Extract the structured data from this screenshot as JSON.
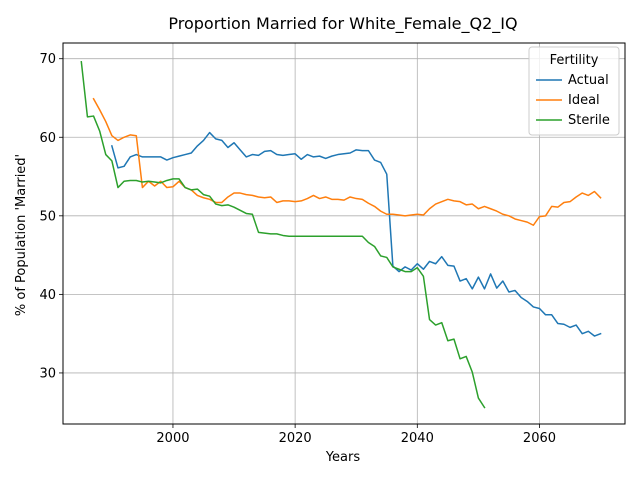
{
  "chart_data": {
    "type": "line",
    "title": "Proportion Married for White_Female_Q2_IQ",
    "xlabel": "Years",
    "ylabel": "% of Population 'Married'",
    "xlim": [
      1982,
      2074
    ],
    "ylim": [
      23.5,
      72
    ],
    "xticks": [
      2000,
      2020,
      2040,
      2060
    ],
    "yticks": [
      30,
      40,
      50,
      60,
      70
    ],
    "grid": true,
    "legend": {
      "title": "Fertility",
      "placement": "top-right"
    },
    "series": [
      {
        "name": "Actual",
        "color": "#1f77b4",
        "x": [
          1990,
          1991,
          1992,
          1993,
          1994,
          1995,
          1996,
          1997,
          1998,
          1999,
          2000,
          2001,
          2002,
          2003,
          2004,
          2005,
          2006,
          2007,
          2008,
          2009,
          2010,
          2011,
          2012,
          2013,
          2014,
          2015,
          2016,
          2017,
          2018,
          2019,
          2020,
          2021,
          2022,
          2023,
          2024,
          2025,
          2026,
          2027,
          2028,
          2029,
          2030,
          2031,
          2032,
          2033,
          2034,
          2035,
          2036,
          2037,
          2038,
          2039,
          2040,
          2041,
          2042,
          2043,
          2044,
          2045,
          2046,
          2047,
          2048,
          2049,
          2050,
          2051,
          2052,
          2053,
          2054,
          2055,
          2056,
          2057,
          2058,
          2059,
          2060,
          2061,
          2062,
          2063,
          2064,
          2065,
          2066,
          2067,
          2068,
          2069,
          2070
        ],
        "y": [
          58.9,
          56.1,
          56.3,
          57.5,
          57.8,
          57.5,
          57.5,
          57.5,
          57.5,
          57.1,
          57.4,
          57.6,
          57.8,
          58.0,
          58.9,
          59.6,
          60.6,
          59.8,
          59.6,
          58.7,
          59.3,
          58.4,
          57.5,
          57.8,
          57.7,
          58.2,
          58.3,
          57.8,
          57.7,
          57.8,
          57.9,
          57.2,
          57.8,
          57.5,
          57.6,
          57.3,
          57.6,
          57.8,
          57.9,
          58.0,
          58.4,
          58.3,
          58.3,
          57.1,
          56.8,
          55.3,
          43.6,
          42.9,
          43.5,
          43.1,
          43.9,
          43.2,
          44.2,
          43.9,
          44.8,
          43.7,
          43.6,
          41.7,
          42.0,
          40.7,
          42.2,
          40.7,
          42.6,
          40.8,
          41.7,
          40.3,
          40.5,
          39.6,
          39.1,
          38.4,
          38.2,
          37.4,
          37.4,
          36.3,
          36.2,
          35.8,
          36.1,
          35.0,
          35.3,
          34.7,
          35.0
        ]
      },
      {
        "name": "Ideal",
        "color": "#ff7f0e",
        "x": [
          1987,
          1988,
          1989,
          1990,
          1991,
          1992,
          1993,
          1994,
          1995,
          1996,
          1997,
          1998,
          1999,
          2000,
          2001,
          2002,
          2003,
          2004,
          2005,
          2006,
          2007,
          2008,
          2009,
          2010,
          2011,
          2012,
          2013,
          2014,
          2015,
          2016,
          2017,
          2018,
          2019,
          2020,
          2021,
          2022,
          2023,
          2024,
          2025,
          2026,
          2027,
          2028,
          2029,
          2030,
          2031,
          2032,
          2033,
          2034,
          2035,
          2036,
          2037,
          2038,
          2039,
          2040,
          2041,
          2042,
          2043,
          2044,
          2045,
          2046,
          2047,
          2048,
          2049,
          2050,
          2051,
          2052,
          2053,
          2054,
          2055,
          2056,
          2057,
          2058,
          2059,
          2060,
          2061,
          2062,
          2063,
          2064,
          2065,
          2066,
          2067,
          2068,
          2069,
          2070
        ],
        "y": [
          64.9,
          63.5,
          62.0,
          60.2,
          59.6,
          60.0,
          60.3,
          60.2,
          53.6,
          54.4,
          53.8,
          54.4,
          53.6,
          53.7,
          54.4,
          53.6,
          53.3,
          52.6,
          52.3,
          52.1,
          51.7,
          51.7,
          52.4,
          52.9,
          52.9,
          52.7,
          52.6,
          52.4,
          52.3,
          52.4,
          51.7,
          51.9,
          51.9,
          51.8,
          51.9,
          52.2,
          52.6,
          52.2,
          52.4,
          52.1,
          52.1,
          52.0,
          52.4,
          52.2,
          52.1,
          51.6,
          51.2,
          50.6,
          50.2,
          50.2,
          50.1,
          50.0,
          50.1,
          50.2,
          50.1,
          50.9,
          51.5,
          51.8,
          52.1,
          51.9,
          51.8,
          51.4,
          51.5,
          50.9,
          51.2,
          50.9,
          50.6,
          50.2,
          50.0,
          49.6,
          49.4,
          49.2,
          48.8,
          49.9,
          50.0,
          51.2,
          51.1,
          51.7,
          51.8,
          52.4,
          52.9,
          52.6,
          53.1,
          52.3
        ]
      },
      {
        "name": "Sterile",
        "color": "#2ca02c",
        "x": [
          1985,
          1986,
          1987,
          1988,
          1989,
          1990,
          1991,
          1992,
          1993,
          1994,
          1995,
          1996,
          1997,
          1998,
          1999,
          2000,
          2001,
          2002,
          2003,
          2004,
          2005,
          2006,
          2007,
          2008,
          2009,
          2010,
          2011,
          2012,
          2013,
          2014,
          2015,
          2016,
          2017,
          2018,
          2019,
          2020,
          2021,
          2022,
          2023,
          2024,
          2025,
          2026,
          2027,
          2028,
          2029,
          2030,
          2031,
          2032,
          2033,
          2034,
          2035,
          2036,
          2037,
          2038,
          2039,
          2040,
          2041,
          2042,
          2043,
          2044,
          2045,
          2046,
          2047,
          2048,
          2049,
          2050,
          2051
        ],
        "y": [
          69.6,
          62.6,
          62.7,
          60.8,
          57.8,
          57.0,
          53.6,
          54.4,
          54.5,
          54.5,
          54.3,
          54.4,
          54.3,
          54.2,
          54.5,
          54.7,
          54.7,
          53.6,
          53.3,
          53.4,
          52.7,
          52.5,
          51.5,
          51.3,
          51.4,
          51.1,
          50.7,
          50.3,
          50.2,
          47.9,
          47.8,
          47.7,
          47.7,
          47.5,
          47.4,
          47.4,
          47.4,
          47.4,
          47.4,
          47.4,
          47.4,
          47.4,
          47.4,
          47.4,
          47.4,
          47.4,
          47.4,
          46.6,
          46.1,
          44.9,
          44.7,
          43.5,
          43.2,
          42.9,
          42.9,
          43.4,
          42.3,
          36.8,
          36.1,
          36.4,
          34.1,
          34.3,
          31.8,
          32.1,
          30.1,
          26.8,
          25.6
        ]
      }
    ]
  }
}
